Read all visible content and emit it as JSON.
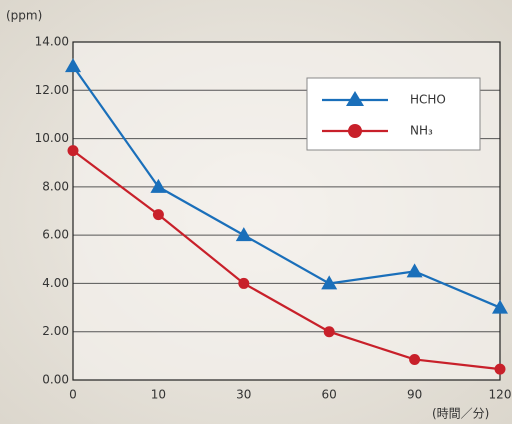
{
  "chart_data": {
    "type": "line",
    "y_label": "(ppm)",
    "x_label": "(時間／分)",
    "categories": [
      "0",
      "10",
      "30",
      "60",
      "90",
      "120"
    ],
    "series": [
      {
        "name": "HCHO",
        "color": "#1a6fba",
        "marker": "triangle",
        "values": [
          13,
          8,
          6,
          4,
          4.5,
          3
        ]
      },
      {
        "name": "NH₃",
        "color": "#c8202a",
        "marker": "circle",
        "values": [
          9.5,
          6.85,
          4,
          2,
          0.85,
          0.45
        ]
      }
    ],
    "ylim": [
      0,
      14
    ],
    "yticks": [
      {
        "value": 0,
        "label": "0.00"
      },
      {
        "value": 2,
        "label": "2.00"
      },
      {
        "value": 4,
        "label": "4.00"
      },
      {
        "value": 6,
        "label": "6.00"
      },
      {
        "value": 8,
        "label": "8.00"
      },
      {
        "value": 10,
        "label": "10.00"
      },
      {
        "value": 12,
        "label": "12.00"
      },
      {
        "value": 14,
        "label": "14.00"
      }
    ],
    "grid": true
  }
}
